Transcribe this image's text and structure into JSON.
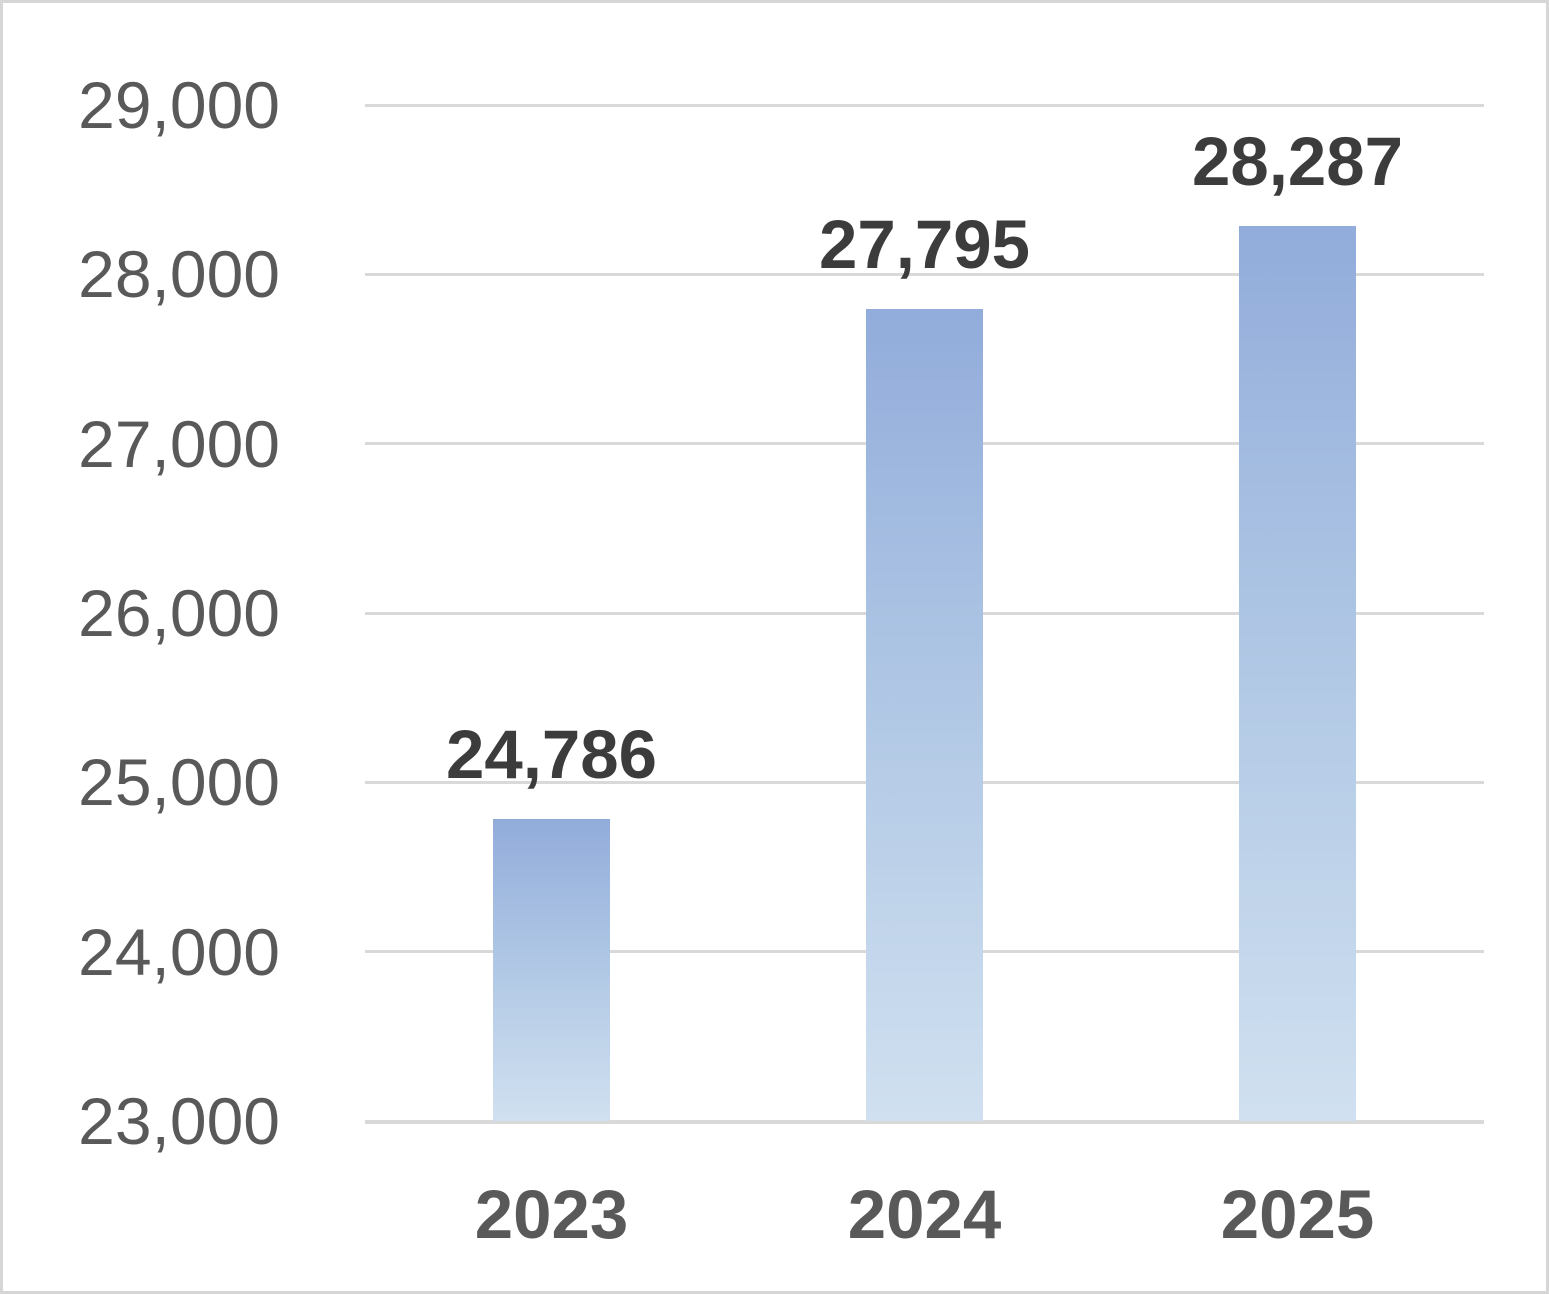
{
  "chart_data": {
    "type": "bar",
    "title": "",
    "xlabel": "",
    "ylabel": "",
    "categories": [
      "2023",
      "2024",
      "2025"
    ],
    "values": [
      24786,
      27795,
      28287
    ],
    "data_labels": [
      "24,786",
      "27,795",
      "28,287"
    ],
    "ylim": [
      23000,
      29000
    ],
    "ytick_interval": 1000,
    "yticks": [
      29000,
      28000,
      27000,
      26000,
      25000,
      24000,
      23000
    ],
    "ytick_labels": [
      "29,000",
      "28,000",
      "27,000",
      "26,000",
      "25,000",
      "24,000",
      "23,000"
    ],
    "grid": "horizontal-only",
    "legend": "none",
    "bar_count": 3,
    "colors": {
      "bar_gradient_top": "#92ACDB",
      "bar_gradient_bottom": "#D0E0F0",
      "gridline": "#D9D9D9",
      "axis_label_text": "#595959",
      "data_label_text": "#3C3C3C",
      "background": "#FFFFFF",
      "frame_border": "#D6D6D6"
    }
  }
}
